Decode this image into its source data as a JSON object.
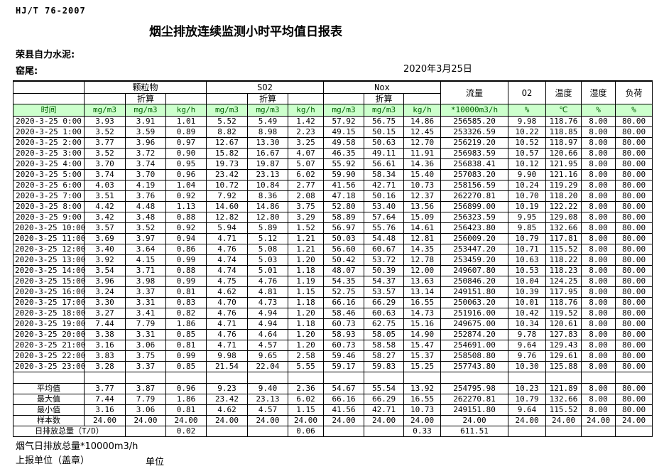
{
  "header": {
    "standard": "HJ/T  76-2007",
    "title": "烟尘排放连续监测小时平均值日报表",
    "company": "荣县自力水泥:",
    "stack": "窑尾:",
    "date": "2020年3月25日"
  },
  "table": {
    "time_label": "时间",
    "groups": {
      "pm": "颗粒物",
      "so2": "SO2",
      "nox": "Nox",
      "flow": "流量",
      "o2": "O2",
      "temp": "温度",
      "humidity": "湿度",
      "load": "负荷"
    },
    "converted_label": "折算",
    "units": [
      "mg/m3",
      "mg/m3",
      "kg/h",
      "mg/m3",
      "mg/m3",
      "kg/h",
      "mg/m3",
      "mg/m3",
      "kg/h",
      "*10000m3/h",
      "%",
      "℃",
      "%",
      "%"
    ],
    "rows": [
      [
        "2020-3-25 0:00",
        "3.93",
        "3.91",
        "1.01",
        "5.52",
        "5.49",
        "1.42",
        "57.92",
        "56.75",
        "14.86",
        "256585.20",
        "9.98",
        "118.76",
        "8.00",
        "80.00"
      ],
      [
        "2020-3-25 1:00",
        "3.52",
        "3.59",
        "0.89",
        "8.82",
        "8.98",
        "2.23",
        "49.15",
        "50.15",
        "12.45",
        "253326.59",
        "10.22",
        "118.85",
        "8.00",
        "80.00"
      ],
      [
        "2020-3-25 2:00",
        "3.77",
        "3.96",
        "0.97",
        "12.67",
        "13.30",
        "3.25",
        "49.58",
        "50.63",
        "12.70",
        "256219.20",
        "10.52",
        "118.97",
        "8.00",
        "80.00"
      ],
      [
        "2020-3-25 3:00",
        "3.52",
        "3.72",
        "0.90",
        "15.82",
        "16.67",
        "4.07",
        "46.35",
        "49.11",
        "11.91",
        "256983.59",
        "10.57",
        "120.66",
        "8.00",
        "80.00"
      ],
      [
        "2020-3-25 4:00",
        "3.70",
        "3.74",
        "0.95",
        "19.73",
        "19.87",
        "5.07",
        "55.92",
        "56.61",
        "14.36",
        "256838.41",
        "10.12",
        "121.95",
        "8.00",
        "80.00"
      ],
      [
        "2020-3-25 5:00",
        "3.74",
        "3.70",
        "0.96",
        "23.42",
        "23.13",
        "6.02",
        "59.90",
        "58.34",
        "15.40",
        "257083.20",
        "9.90",
        "121.16",
        "8.00",
        "80.00"
      ],
      [
        "2020-3-25 6:00",
        "4.03",
        "4.19",
        "1.04",
        "10.72",
        "10.84",
        "2.77",
        "41.56",
        "42.71",
        "10.73",
        "258156.59",
        "10.24",
        "119.29",
        "8.00",
        "80.00"
      ],
      [
        "2020-3-25 7:00",
        "3.51",
        "3.76",
        "0.92",
        "7.92",
        "8.36",
        "2.08",
        "47.18",
        "50.16",
        "12.37",
        "262270.81",
        "10.70",
        "118.20",
        "8.00",
        "80.00"
      ],
      [
        "2020-3-25 8:00",
        "4.42",
        "4.48",
        "1.13",
        "14.60",
        "14.86",
        "3.75",
        "52.80",
        "53.40",
        "13.56",
        "256899.00",
        "10.19",
        "122.22",
        "8.00",
        "80.00"
      ],
      [
        "2020-3-25 9:00",
        "3.42",
        "3.48",
        "0.88",
        "12.82",
        "12.80",
        "3.29",
        "58.89",
        "57.64",
        "15.09",
        "256323.59",
        "9.95",
        "129.08",
        "8.00",
        "80.00"
      ],
      [
        "2020-3-25 10:00",
        "3.57",
        "3.52",
        "0.92",
        "5.94",
        "5.89",
        "1.52",
        "56.97",
        "55.76",
        "14.61",
        "256423.80",
        "9.85",
        "132.66",
        "8.00",
        "80.00"
      ],
      [
        "2020-3-25 11:00",
        "3.69",
        "3.97",
        "0.94",
        "4.71",
        "5.12",
        "1.21",
        "50.03",
        "54.48",
        "12.81",
        "256009.20",
        "10.79",
        "117.81",
        "8.00",
        "80.00"
      ],
      [
        "2020-3-25 12:00",
        "3.40",
        "3.64",
        "0.86",
        "4.76",
        "5.08",
        "1.21",
        "56.60",
        "60.67",
        "14.35",
        "253447.20",
        "10.71",
        "115.52",
        "8.00",
        "80.00"
      ],
      [
        "2020-3-25 13:00",
        "3.92",
        "4.15",
        "0.99",
        "4.74",
        "5.03",
        "1.20",
        "50.42",
        "53.72",
        "12.78",
        "253459.20",
        "10.63",
        "118.22",
        "8.00",
        "80.00"
      ],
      [
        "2020-3-25 14:00",
        "3.54",
        "3.71",
        "0.88",
        "4.74",
        "5.01",
        "1.18",
        "48.07",
        "50.39",
        "12.00",
        "249607.80",
        "10.53",
        "118.23",
        "8.00",
        "80.00"
      ],
      [
        "2020-3-25 15:00",
        "3.96",
        "3.98",
        "0.99",
        "4.75",
        "4.76",
        "1.19",
        "54.35",
        "54.37",
        "13.63",
        "250846.20",
        "10.04",
        "124.25",
        "8.00",
        "80.00"
      ],
      [
        "2020-3-25 16:00",
        "3.24",
        "3.37",
        "0.81",
        "4.62",
        "4.81",
        "1.15",
        "52.75",
        "53.57",
        "13.14",
        "249151.80",
        "10.39",
        "117.95",
        "8.00",
        "80.00"
      ],
      [
        "2020-3-25 17:00",
        "3.30",
        "3.31",
        "0.83",
        "4.70",
        "4.73",
        "1.18",
        "66.16",
        "66.29",
        "16.55",
        "250063.20",
        "10.01",
        "118.76",
        "8.00",
        "80.00"
      ],
      [
        "2020-3-25 18:00",
        "3.27",
        "3.41",
        "0.82",
        "4.76",
        "4.94",
        "1.20",
        "58.46",
        "60.63",
        "14.73",
        "251916.00",
        "10.42",
        "119.52",
        "8.00",
        "80.00"
      ],
      [
        "2020-3-25 19:00",
        "7.44",
        "7.79",
        "1.86",
        "4.71",
        "4.94",
        "1.18",
        "60.73",
        "62.75",
        "15.16",
        "249675.00",
        "10.34",
        "120.61",
        "8.00",
        "80.00"
      ],
      [
        "2020-3-25 20:00",
        "3.38",
        "3.31",
        "0.85",
        "4.76",
        "4.64",
        "1.20",
        "58.93",
        "58.05",
        "14.90",
        "252874.20",
        "9.78",
        "127.83",
        "8.00",
        "80.00"
      ],
      [
        "2020-3-25 21:00",
        "3.16",
        "3.06",
        "0.81",
        "4.71",
        "4.57",
        "1.20",
        "60.73",
        "58.58",
        "15.47",
        "254691.00",
        "9.64",
        "129.43",
        "8.00",
        "80.00"
      ],
      [
        "2020-3-25 22:00",
        "3.83",
        "3.75",
        "0.99",
        "9.98",
        "9.65",
        "2.58",
        "59.46",
        "58.27",
        "15.37",
        "258508.80",
        "9.76",
        "129.61",
        "8.00",
        "80.00"
      ],
      [
        "2020-3-25 23:00",
        "3.28",
        "3.37",
        "0.85",
        "21.54",
        "22.04",
        "5.55",
        "59.17",
        "59.83",
        "15.25",
        "257743.80",
        "10.30",
        "125.88",
        "8.00",
        "80.00"
      ]
    ],
    "summary_rows": [
      [
        "平均值",
        "3.77",
        "3.87",
        "0.96",
        "9.23",
        "9.40",
        "2.36",
        "54.67",
        "55.54",
        "13.92",
        "254795.98",
        "10.23",
        "121.89",
        "8.00",
        "80.00"
      ],
      [
        "最大值",
        "7.44",
        "7.79",
        "1.86",
        "23.42",
        "23.13",
        "6.02",
        "66.16",
        "66.29",
        "16.55",
        "262270.81",
        "10.79",
        "132.66",
        "8.00",
        "80.00"
      ],
      [
        "最小值",
        "3.16",
        "3.06",
        "0.81",
        "4.62",
        "4.57",
        "1.15",
        "41.56",
        "42.71",
        "10.73",
        "249151.80",
        "9.64",
        "115.52",
        "8.00",
        "80.00"
      ],
      [
        "样本数",
        "24.00",
        "24.00",
        "24.00",
        "24.00",
        "24.00",
        "24.00",
        "24.00",
        "24.00",
        "24.00",
        "24.00",
        "24.00",
        "24.00",
        "24.00",
        "24.00"
      ]
    ],
    "daily_total": {
      "label": "日排放总量（T/D）",
      "values": [
        "",
        "0.02",
        "",
        "",
        "0.06",
        "",
        "",
        "0.33",
        "611.51",
        "",
        "",
        "",
        ""
      ]
    }
  },
  "footer": {
    "flow_note": "烟气日排放总量*10000m3/h",
    "report_unit": "上报单位（盖章）",
    "unit_label": "单位"
  },
  "colors": {
    "header_green_bg": "#ccffcc",
    "header_green_text": "#006100"
  }
}
